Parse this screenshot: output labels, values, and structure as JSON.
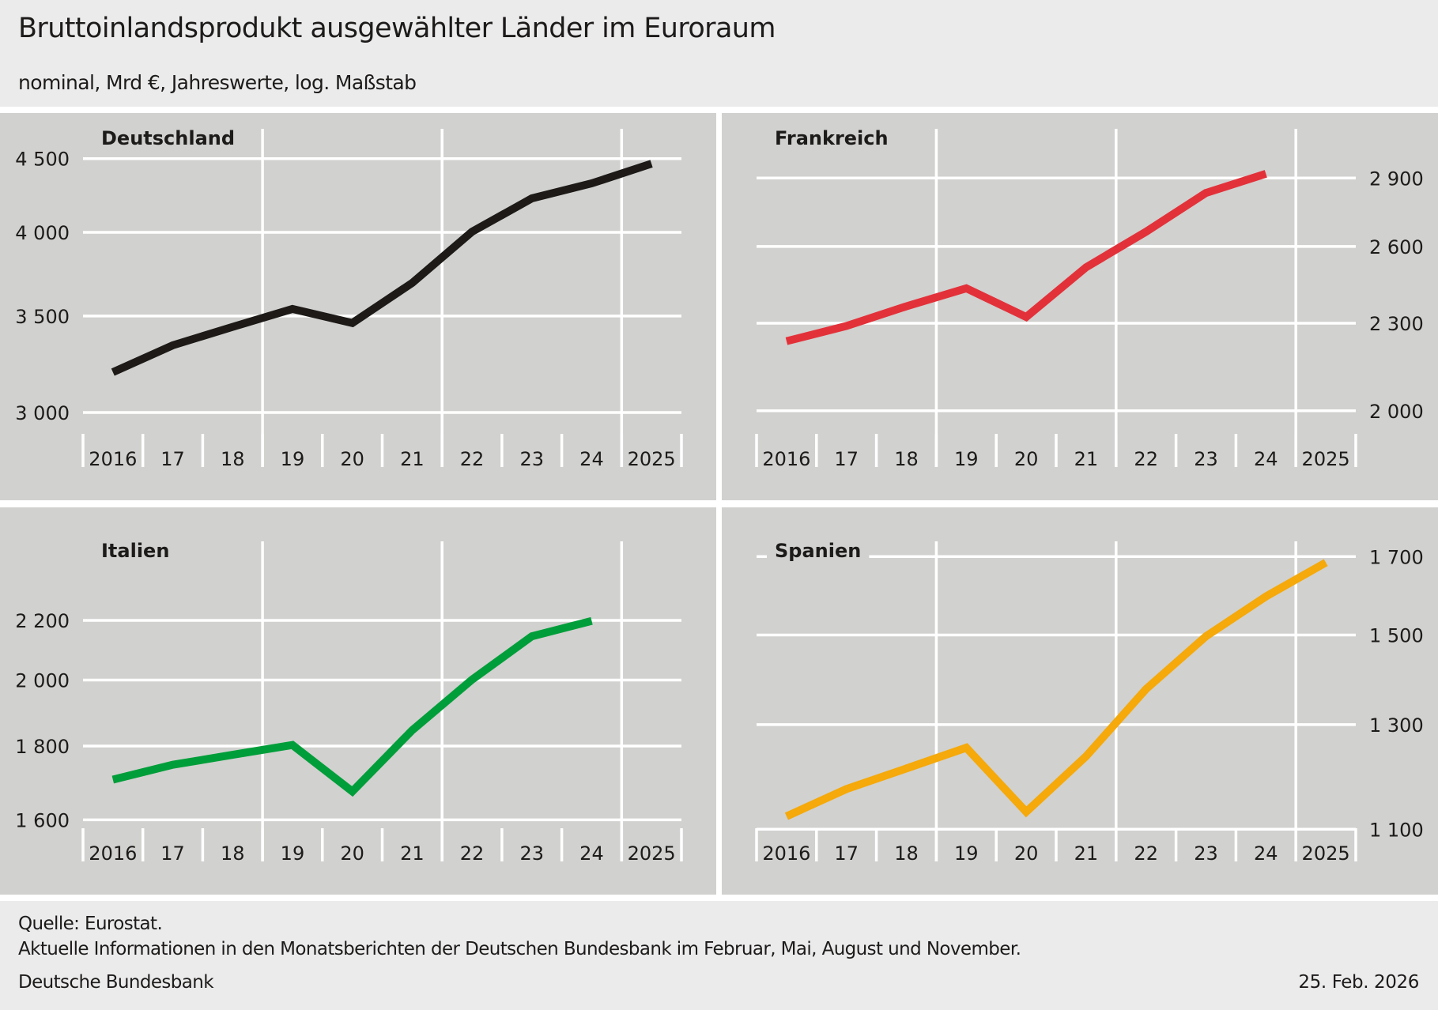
{
  "header": {
    "title": "Bruttoinlandsprodukt ausgewählter Länder im Euroraum",
    "subtitle": "nominal, Mrd €, Jahreswerte, log. Maßstab"
  },
  "footer": {
    "source": "Quelle: Eurostat.",
    "note": "Aktuelle Informationen in den Monatsberichten der Deutschen Bundesbank im Februar, Mai, August und November.",
    "publisher": "Deutsche Bundesbank",
    "date": "25. Feb. 2026"
  },
  "chart_data": [
    {
      "type": "line",
      "title": "Deutschland",
      "scale": "log",
      "axis_side": "left",
      "color": "#1d1a18",
      "x": [
        "2016",
        "17",
        "18",
        "19",
        "20",
        "21",
        "22",
        "23",
        "24",
        "2025"
      ],
      "yticks": [
        3000,
        3500,
        4000,
        4500
      ],
      "ytick_labels": [
        "3 000",
        "3 500",
        "4 000",
        "4 500"
      ],
      "values": [
        3200,
        3340,
        3440,
        3540,
        3461,
        3690,
        4004,
        4223,
        4326,
        4464
      ]
    },
    {
      "type": "line",
      "title": "Frankreich",
      "scale": "log",
      "axis_side": "right",
      "color": "#e3313a",
      "x": [
        "2016",
        "17",
        "18",
        "19",
        "20",
        "21",
        "22",
        "23",
        "24",
        "2025"
      ],
      "yticks": [
        2000,
        2300,
        2600,
        2900
      ],
      "ytick_labels": [
        "2 000",
        "2 300",
        "2 600",
        "2 900"
      ],
      "values": [
        2235,
        2290,
        2363,
        2432,
        2323,
        2515,
        2662,
        2832,
        2920,
        null
      ]
    },
    {
      "type": "line",
      "title": "Italien",
      "scale": "log",
      "axis_side": "left",
      "color": "#009e3a",
      "x": [
        "2016",
        "17",
        "18",
        "19",
        "20",
        "21",
        "22",
        "23",
        "24",
        "2025"
      ],
      "yticks": [
        1600,
        1800,
        2000,
        2200
      ],
      "ytick_labels": [
        "1 600",
        "1 800",
        "2 000",
        "2 200"
      ],
      "values": [
        1706,
        1747,
        1775,
        1803,
        1674,
        1846,
        2001,
        2145,
        2198,
        null
      ]
    },
    {
      "type": "line",
      "title": "Spanien",
      "scale": "log",
      "axis_side": "right",
      "color": "#f5a90a",
      "x": [
        "2016",
        "17",
        "18",
        "19",
        "20",
        "21",
        "22",
        "23",
        "24",
        "2025"
      ],
      "yticks": [
        1100,
        1300,
        1500,
        1700
      ],
      "ytick_labels": [
        "1 100",
        "1 300",
        "1 500",
        "1 700"
      ],
      "values": [
        1123,
        1173,
        1212,
        1253,
        1131,
        1236,
        1376,
        1497,
        1595,
        1684
      ]
    }
  ]
}
